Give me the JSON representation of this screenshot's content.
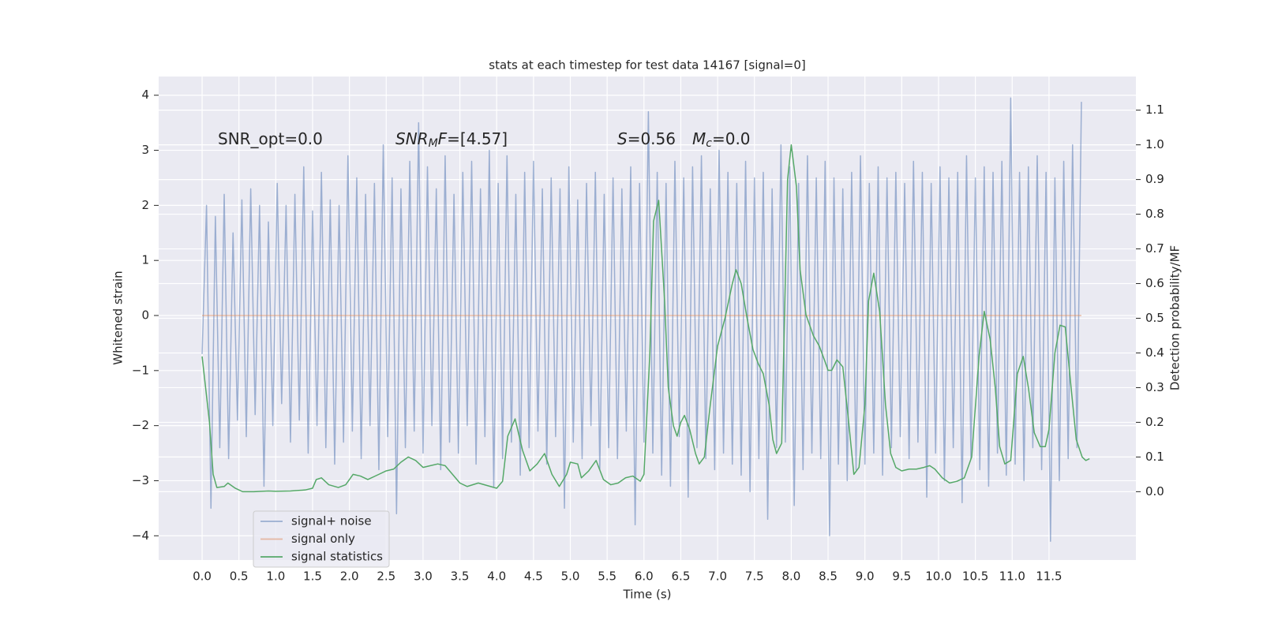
{
  "chart_data": {
    "type": "line",
    "title": "stats at each timestep for test data 14167 [signal=0]",
    "xlabel": "Time (s)",
    "ylabel": "Whitened strain",
    "y2label": "Detection probability/MF",
    "background": "#eaeaf2",
    "grid": true,
    "grid_color": "#ffffff",
    "legend": "lower left",
    "xlim": [
      -0.59,
      12.68
    ],
    "ylim": [
      -4.44,
      4.34
    ],
    "y2lim": [
      -0.197,
      1.197
    ],
    "xticks": [
      {
        "value": 0,
        "label": "0.0"
      },
      0.5,
      {
        "value": 1,
        "label": "1.0"
      },
      1.5,
      {
        "value": 2,
        "label": "2.0"
      },
      2.5,
      {
        "value": 3,
        "label": "3.0"
      },
      3.5,
      {
        "value": 4,
        "label": "4.0"
      },
      4.5,
      {
        "value": 5,
        "label": "5.0"
      },
      5.5,
      {
        "value": 6,
        "label": "6.0"
      },
      6.5,
      {
        "value": 7,
        "label": "7.0"
      },
      7.5,
      {
        "value": 8,
        "label": "8.0"
      },
      8.5,
      {
        "value": 9,
        "label": "9.0"
      },
      9.5,
      {
        "value": 10,
        "label": "10.0"
      },
      10.5,
      {
        "value": 11,
        "label": "11.0"
      },
      11.5
    ],
    "yticks": [
      {
        "value": -4,
        "label": "−4"
      },
      {
        "value": -3,
        "label": "−3"
      },
      {
        "value": -2,
        "label": "−2"
      },
      {
        "value": -1,
        "label": "−1"
      },
      0,
      1,
      2,
      3,
      4
    ],
    "y2ticks": [
      {
        "value": 0,
        "label": "0.0"
      },
      0.1,
      0.2,
      0.3,
      0.4,
      0.5,
      0.6,
      0.7,
      0.8,
      0.9,
      {
        "value": 1,
        "label": "1.0"
      },
      1.1
    ],
    "annotations": [
      {
        "segments": [
          {
            "text": "SNR_opt=0.0"
          }
        ]
      },
      {
        "segments": [
          {
            "text": "SNR",
            "style": "italic"
          },
          {
            "text": "M",
            "style": "italic-sub"
          },
          {
            "text": "F",
            "style": "italic"
          },
          {
            "text": "=[4.57]"
          }
        ]
      },
      {
        "segments": [
          {
            "text": "S",
            "style": "italic"
          },
          {
            "text": "=0.56"
          }
        ]
      },
      {
        "segments": [
          {
            "text": "M",
            "style": "italic"
          },
          {
            "text": "c",
            "style": "italic-sub"
          },
          {
            "text": "=0.0"
          }
        ]
      }
    ],
    "series": [
      {
        "name": "signal+ noise",
        "color": "#4c72b0",
        "alpha": 0.5,
        "axis": "y",
        "x": [
          0,
          0.06,
          0.12,
          0.18,
          0.24,
          0.3,
          0.36,
          0.42,
          0.48,
          0.54,
          0.6,
          0.66,
          0.72,
          0.78,
          0.84,
          0.9,
          0.96,
          1.02,
          1.08,
          1.14,
          1.2,
          1.26,
          1.32,
          1.38,
          1.44,
          1.5,
          1.56,
          1.62,
          1.68,
          1.74,
          1.8,
          1.86,
          1.92,
          1.98,
          2.04,
          2.1,
          2.16,
          2.22,
          2.28,
          2.34,
          2.4,
          2.46,
          2.52,
          2.58,
          2.64,
          2.7,
          2.76,
          2.82,
          2.88,
          2.94,
          3.0,
          3.06,
          3.12,
          3.18,
          3.24,
          3.3,
          3.36,
          3.42,
          3.48,
          3.54,
          3.6,
          3.66,
          3.72,
          3.78,
          3.84,
          3.9,
          3.96,
          4.02,
          4.08,
          4.14,
          4.2,
          4.26,
          4.32,
          4.38,
          4.44,
          4.5,
          4.56,
          4.62,
          4.68,
          4.74,
          4.8,
          4.86,
          4.92,
          4.98,
          5.04,
          5.1,
          5.16,
          5.22,
          5.28,
          5.34,
          5.4,
          5.46,
          5.52,
          5.58,
          5.64,
          5.7,
          5.76,
          5.82,
          5.88,
          5.94,
          6.0,
          6.06,
          6.12,
          6.18,
          6.24,
          6.3,
          6.36,
          6.42,
          6.48,
          6.54,
          6.6,
          6.66,
          6.72,
          6.78,
          6.84,
          6.9,
          6.96,
          7.02,
          7.08,
          7.14,
          7.2,
          7.26,
          7.32,
          7.38,
          7.44,
          7.5,
          7.56,
          7.62,
          7.68,
          7.74,
          7.8,
          7.86,
          7.92,
          7.98,
          8.04,
          8.1,
          8.16,
          8.22,
          8.28,
          8.34,
          8.4,
          8.46,
          8.52,
          8.58,
          8.64,
          8.7,
          8.76,
          8.82,
          8.88,
          8.94,
          9.0,
          9.06,
          9.12,
          9.18,
          9.24,
          9.3,
          9.36,
          9.42,
          9.48,
          9.54,
          9.6,
          9.66,
          9.72,
          9.78,
          9.84,
          9.9,
          9.96,
          10.02,
          10.08,
          10.14,
          10.2,
          10.26,
          10.32,
          10.38,
          10.44,
          10.5,
          10.56,
          10.62,
          10.68,
          10.74,
          10.8,
          10.86,
          10.92,
          10.98,
          11.04,
          11.1,
          11.16,
          11.22,
          11.28,
          11.34,
          11.4,
          11.46,
          11.52,
          11.58,
          11.64,
          11.7,
          11.76,
          11.82,
          11.88,
          11.94
        ],
        "values": [
          -0.7,
          2.0,
          -3.5,
          1.8,
          -2.4,
          2.2,
          -2.6,
          1.5,
          -1.9,
          2.1,
          -2.2,
          2.3,
          -1.8,
          2.0,
          -3.1,
          1.7,
          -2.0,
          2.4,
          -1.6,
          2.0,
          -2.3,
          2.2,
          -1.9,
          2.7,
          -2.5,
          1.9,
          -2.0,
          2.6,
          -2.4,
          2.1,
          -2.7,
          2.0,
          -2.3,
          2.9,
          -2.1,
          2.5,
          -2.6,
          2.2,
          -2.0,
          2.4,
          -2.8,
          3.1,
          -2.2,
          2.5,
          -3.6,
          2.3,
          -2.4,
          2.8,
          -2.1,
          3.5,
          -2.5,
          2.7,
          -2.0,
          2.3,
          -2.8,
          2.9,
          -2.3,
          2.2,
          -2.5,
          2.6,
          -2.0,
          2.8,
          -2.7,
          2.3,
          -2.2,
          3.0,
          -3.1,
          2.4,
          -2.6,
          2.9,
          -2.3,
          2.2,
          -2.9,
          2.6,
          -2.4,
          2.8,
          -2.1,
          2.3,
          -2.7,
          2.5,
          -2.2,
          2.3,
          -3.5,
          2.7,
          -2.3,
          2.1,
          -2.6,
          2.4,
          -2.0,
          2.6,
          -2.8,
          2.2,
          -2.4,
          2.5,
          -2.6,
          2.3,
          -2.1,
          2.7,
          -3.8,
          2.4,
          -2.3,
          3.7,
          -2.5,
          2.6,
          -2.9,
          2.4,
          -3.1,
          2.8,
          -2.2,
          2.5,
          -3.3,
          2.7,
          -2.4,
          2.9,
          -2.6,
          2.3,
          -2.8,
          3.0,
          -2.5,
          2.6,
          -2.7,
          2.4,
          -2.9,
          2.8,
          -3.2,
          2.5,
          -2.6,
          2.6,
          -3.7,
          2.3,
          -2.4,
          3.1,
          -2.3,
          2.7,
          -3.45,
          2.4,
          -2.8,
          2.9,
          -2.5,
          2.5,
          -2.6,
          2.8,
          -4.0,
          2.5,
          -2.7,
          2.3,
          -3.0,
          2.6,
          -2.8,
          2.9,
          -2.7,
          2.4,
          -2.5,
          2.7,
          -2.9,
          2.5,
          -2.4,
          2.6,
          -2.2,
          2.4,
          -2.6,
          2.8,
          -2.3,
          2.6,
          -3.3,
          2.4,
          -2.5,
          2.7,
          -3.0,
          2.5,
          -2.4,
          2.6,
          -3.4,
          2.9,
          -2.6,
          2.5,
          -2.8,
          2.7,
          -3.1,
          2.6,
          -2.5,
          2.8,
          -2.9,
          3.95,
          -2.7,
          2.6,
          -3.0,
          2.7,
          -2.4,
          2.9,
          -2.8,
          2.6,
          -4.1,
          2.5,
          -3.0,
          2.8,
          -2.6,
          3.1,
          -2.4,
          3.88
        ]
      },
      {
        "name": "signal only",
        "color": "#dd8452",
        "alpha": 0.5,
        "axis": "y",
        "x": [
          0,
          11.94
        ],
        "values": [
          0,
          0
        ]
      },
      {
        "name": "signal statistics",
        "color": "#55a868",
        "alpha": 1,
        "axis": "y2",
        "x": [
          0,
          0.1,
          0.15,
          0.2,
          0.3,
          0.35,
          0.45,
          0.55,
          0.7,
          0.9,
          1.0,
          1.2,
          1.4,
          1.5,
          1.55,
          1.62,
          1.72,
          1.85,
          1.95,
          2.05,
          2.15,
          2.25,
          2.4,
          2.5,
          2.6,
          2.7,
          2.8,
          2.9,
          3.0,
          3.1,
          3.2,
          3.3,
          3.4,
          3.5,
          3.6,
          3.75,
          4.0,
          4.08,
          4.15,
          4.25,
          4.35,
          4.45,
          4.55,
          4.65,
          4.75,
          4.85,
          4.95,
          5.0,
          5.1,
          5.15,
          5.25,
          5.35,
          5.45,
          5.55,
          5.65,
          5.75,
          5.85,
          5.95,
          6.0,
          6.08,
          6.13,
          6.2,
          6.28,
          6.33,
          6.4,
          6.45,
          6.5,
          6.55,
          6.62,
          6.7,
          6.75,
          6.82,
          6.9,
          7.0,
          7.1,
          7.2,
          7.25,
          7.32,
          7.4,
          7.48,
          7.55,
          7.62,
          7.7,
          7.75,
          7.8,
          7.87,
          7.95,
          8.0,
          8.07,
          8.12,
          8.2,
          8.3,
          8.38,
          8.45,
          8.5,
          8.55,
          8.62,
          8.7,
          8.78,
          8.85,
          8.92,
          9.0,
          9.05,
          9.12,
          9.2,
          9.28,
          9.35,
          9.42,
          9.5,
          9.6,
          9.7,
          9.8,
          9.88,
          9.95,
          10.05,
          10.15,
          10.25,
          10.35,
          10.45,
          10.55,
          10.62,
          10.7,
          10.77,
          10.83,
          10.9,
          10.98,
          11.07,
          11.15,
          11.22,
          11.3,
          11.38,
          11.45,
          11.5,
          11.58,
          11.65,
          11.72,
          11.8,
          11.87,
          11.95,
          12.0,
          12.05
        ],
        "values": [
          0.39,
          0.2,
          0.05,
          0.012,
          0.015,
          0.025,
          0.01,
          0.0,
          0.0,
          0.002,
          0.001,
          0.002,
          0.005,
          0.01,
          0.035,
          0.04,
          0.02,
          0.012,
          0.02,
          0.05,
          0.045,
          0.035,
          0.05,
          0.06,
          0.065,
          0.085,
          0.1,
          0.09,
          0.07,
          0.075,
          0.08,
          0.075,
          0.05,
          0.025,
          0.015,
          0.025,
          0.01,
          0.03,
          0.16,
          0.21,
          0.12,
          0.06,
          0.08,
          0.11,
          0.05,
          0.015,
          0.05,
          0.085,
          0.08,
          0.04,
          0.06,
          0.09,
          0.035,
          0.02,
          0.025,
          0.04,
          0.045,
          0.03,
          0.05,
          0.4,
          0.78,
          0.84,
          0.55,
          0.3,
          0.19,
          0.16,
          0.2,
          0.22,
          0.18,
          0.11,
          0.08,
          0.1,
          0.25,
          0.42,
          0.5,
          0.6,
          0.64,
          0.6,
          0.5,
          0.41,
          0.37,
          0.34,
          0.25,
          0.15,
          0.11,
          0.14,
          0.9,
          1.0,
          0.88,
          0.64,
          0.51,
          0.45,
          0.42,
          0.38,
          0.35,
          0.35,
          0.38,
          0.36,
          0.2,
          0.05,
          0.07,
          0.25,
          0.55,
          0.63,
          0.52,
          0.25,
          0.11,
          0.07,
          0.06,
          0.065,
          0.065,
          0.07,
          0.075,
          0.065,
          0.04,
          0.025,
          0.03,
          0.04,
          0.1,
          0.39,
          0.52,
          0.44,
          0.3,
          0.13,
          0.08,
          0.09,
          0.34,
          0.39,
          0.3,
          0.17,
          0.13,
          0.13,
          0.18,
          0.4,
          0.48,
          0.475,
          0.3,
          0.15,
          0.1,
          0.09,
          0.095
        ]
      }
    ]
  }
}
